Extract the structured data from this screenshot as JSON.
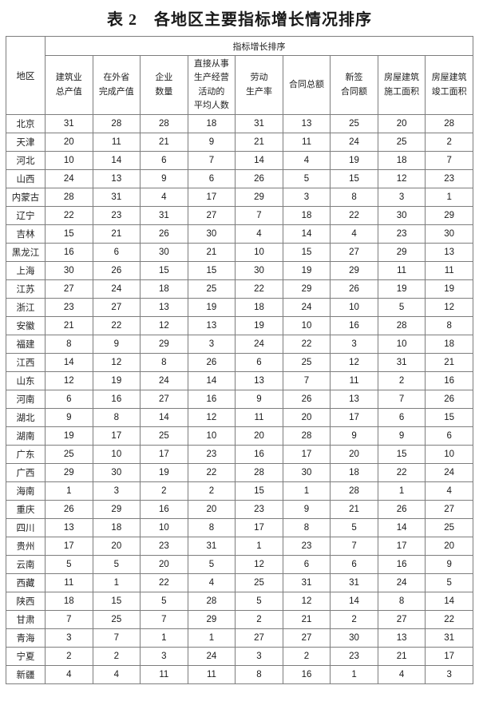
{
  "title": "表 2　各地区主要指标增长情况排序",
  "table": {
    "region_header": "地区",
    "group_header": "指标增长排序",
    "columns": [
      "建筑业\n总产值",
      "在外省\n完成产值",
      "企业\n数量",
      "直接从事\n生产经营\n活动的\n平均人数",
      "劳动\n生产率",
      "合同总额",
      "新签\n合同额",
      "房屋建筑\n施工面积",
      "房屋建筑\n竣工面积"
    ],
    "rows": [
      {
        "region": "北京",
        "values": [
          31,
          28,
          28,
          18,
          31,
          13,
          25,
          20,
          28
        ]
      },
      {
        "region": "天津",
        "values": [
          20,
          11,
          21,
          9,
          21,
          11,
          24,
          25,
          2
        ]
      },
      {
        "region": "河北",
        "values": [
          10,
          14,
          6,
          7,
          14,
          4,
          19,
          18,
          7
        ]
      },
      {
        "region": "山西",
        "values": [
          24,
          13,
          9,
          6,
          26,
          5,
          15,
          12,
          23
        ]
      },
      {
        "region": "内蒙古",
        "values": [
          28,
          31,
          4,
          17,
          29,
          3,
          8,
          3,
          1
        ]
      },
      {
        "region": "辽宁",
        "values": [
          22,
          23,
          31,
          27,
          7,
          18,
          22,
          30,
          29
        ]
      },
      {
        "region": "吉林",
        "values": [
          15,
          21,
          26,
          30,
          4,
          14,
          4,
          23,
          30
        ]
      },
      {
        "region": "黑龙江",
        "values": [
          16,
          6,
          30,
          21,
          10,
          15,
          27,
          29,
          13
        ]
      },
      {
        "region": "上海",
        "values": [
          30,
          26,
          15,
          15,
          30,
          19,
          29,
          11,
          11
        ]
      },
      {
        "region": "江苏",
        "values": [
          27,
          24,
          18,
          25,
          22,
          29,
          26,
          19,
          19
        ]
      },
      {
        "region": "浙江",
        "values": [
          23,
          27,
          13,
          19,
          18,
          24,
          10,
          5,
          12
        ]
      },
      {
        "region": "安徽",
        "values": [
          21,
          22,
          12,
          13,
          19,
          10,
          16,
          28,
          8
        ]
      },
      {
        "region": "福建",
        "values": [
          8,
          9,
          29,
          3,
          24,
          22,
          3,
          10,
          18
        ]
      },
      {
        "region": "江西",
        "values": [
          14,
          12,
          8,
          26,
          6,
          25,
          12,
          31,
          21
        ]
      },
      {
        "region": "山东",
        "values": [
          12,
          19,
          24,
          14,
          13,
          7,
          11,
          2,
          16
        ]
      },
      {
        "region": "河南",
        "values": [
          6,
          16,
          27,
          16,
          9,
          26,
          13,
          7,
          26
        ]
      },
      {
        "region": "湖北",
        "values": [
          9,
          8,
          14,
          12,
          11,
          20,
          17,
          6,
          15
        ]
      },
      {
        "region": "湖南",
        "values": [
          19,
          17,
          25,
          10,
          20,
          28,
          9,
          9,
          6
        ]
      },
      {
        "region": "广东",
        "values": [
          25,
          10,
          17,
          23,
          16,
          17,
          20,
          15,
          10
        ]
      },
      {
        "region": "广西",
        "values": [
          29,
          30,
          19,
          22,
          28,
          30,
          18,
          22,
          24
        ]
      },
      {
        "region": "海南",
        "values": [
          1,
          3,
          2,
          2,
          15,
          1,
          28,
          1,
          4
        ]
      },
      {
        "region": "重庆",
        "values": [
          26,
          29,
          16,
          20,
          23,
          9,
          21,
          26,
          27
        ]
      },
      {
        "region": "四川",
        "values": [
          13,
          18,
          10,
          8,
          17,
          8,
          5,
          14,
          25
        ]
      },
      {
        "region": "贵州",
        "values": [
          17,
          20,
          23,
          31,
          1,
          23,
          7,
          17,
          20
        ]
      },
      {
        "region": "云南",
        "values": [
          5,
          5,
          20,
          5,
          12,
          6,
          6,
          16,
          9
        ]
      },
      {
        "region": "西藏",
        "values": [
          11,
          1,
          22,
          4,
          25,
          31,
          31,
          24,
          5
        ]
      },
      {
        "region": "陕西",
        "values": [
          18,
          15,
          5,
          28,
          5,
          12,
          14,
          8,
          14
        ]
      },
      {
        "region": "甘肃",
        "values": [
          7,
          25,
          7,
          29,
          2,
          21,
          2,
          27,
          22
        ]
      },
      {
        "region": "青海",
        "values": [
          3,
          7,
          1,
          1,
          27,
          27,
          30,
          13,
          31
        ]
      },
      {
        "region": "宁夏",
        "values": [
          2,
          2,
          3,
          24,
          3,
          2,
          23,
          21,
          17
        ]
      },
      {
        "region": "新疆",
        "values": [
          4,
          4,
          11,
          11,
          8,
          16,
          1,
          4,
          3
        ]
      }
    ]
  },
  "colors": {
    "border": "#7d7d7d",
    "text": "#1a1a1a",
    "background": "#ffffff"
  }
}
